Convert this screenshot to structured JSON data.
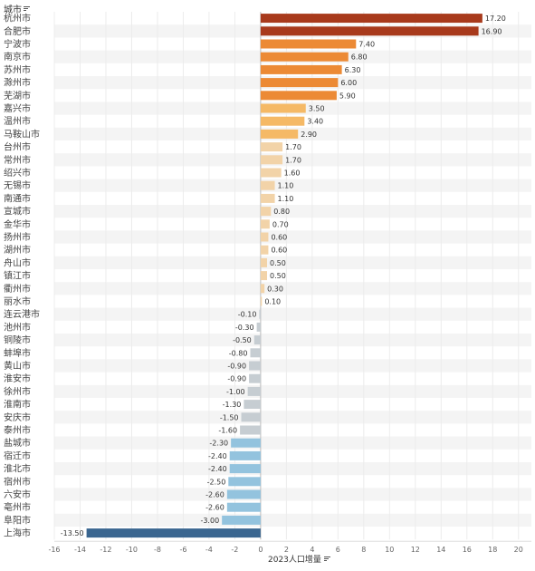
{
  "header": {
    "title": "城市"
  },
  "footer": {
    "label": "2023人口增量"
  },
  "chart_data": {
    "type": "bar",
    "orientation": "horizontal",
    "title": "",
    "ylabel": "城市",
    "xlabel": "2023人口增量",
    "xlim": [
      -16,
      21
    ],
    "x_ticks": [
      -16,
      -14,
      -12,
      -10,
      -8,
      -6,
      -4,
      -2,
      0,
      2,
      4,
      6,
      8,
      10,
      12,
      14,
      16,
      18,
      20
    ],
    "grid": true,
    "categories": [
      "杭州市",
      "合肥市",
      "宁波市",
      "南京市",
      "苏州市",
      "滁州市",
      "芜湖市",
      "嘉兴市",
      "温州市",
      "马鞍山市",
      "台州市",
      "常州市",
      "绍兴市",
      "无锡市",
      "南通市",
      "宣城市",
      "金华市",
      "扬州市",
      "湖州市",
      "舟山市",
      "镇江市",
      "衢州市",
      "丽水市",
      "连云港市",
      "池州市",
      "铜陵市",
      "蚌埠市",
      "黄山市",
      "淮安市",
      "徐州市",
      "淮南市",
      "安庆市",
      "泰州市",
      "盐城市",
      "宿迁市",
      "淮北市",
      "宿州市",
      "六安市",
      "亳州市",
      "阜阳市",
      "上海市"
    ],
    "values": [
      17.2,
      16.9,
      7.4,
      6.8,
      6.3,
      6.0,
      5.9,
      3.5,
      3.4,
      2.9,
      1.7,
      1.7,
      1.6,
      1.1,
      1.1,
      0.8,
      0.7,
      0.6,
      0.6,
      0.5,
      0.5,
      0.3,
      0.1,
      -0.1,
      -0.3,
      -0.5,
      -0.8,
      -0.9,
      -0.9,
      -1.0,
      -1.3,
      -1.5,
      -1.6,
      -2.3,
      -2.4,
      -2.4,
      -2.5,
      -2.6,
      -2.6,
      -3.0,
      -13.5
    ],
    "value_labels": [
      "17.20",
      "16.90",
      "7.40",
      "6.80",
      "6.30",
      "6.00",
      "5.90",
      "3.50",
      "3.40",
      "2.90",
      "1.70",
      "1.70",
      "1.60",
      "1.10",
      "1.10",
      "0.80",
      "0.70",
      "0.60",
      "0.60",
      "0.50",
      "0.50",
      "0.30",
      "0.10",
      "-0.10",
      "-0.30",
      "-0.50",
      "-0.80",
      "-0.90",
      "-0.90",
      "-1.00",
      "-1.30",
      "-1.50",
      "-1.60",
      "-2.30",
      "-2.40",
      "-2.40",
      "-2.50",
      "-2.60",
      "-2.60",
      "-3.00",
      "-13.50"
    ],
    "colors": {
      "positive_dark": "#a83a1c",
      "positive_mid": "#ec8a35",
      "positive_light": "#f5b966",
      "positive_pale": "#f2d3a8",
      "negative_pale": "#c6cdd2",
      "negative_light": "#93c3de",
      "negative_dark": "#3a6690",
      "row_band": "#f4f4f4"
    }
  }
}
